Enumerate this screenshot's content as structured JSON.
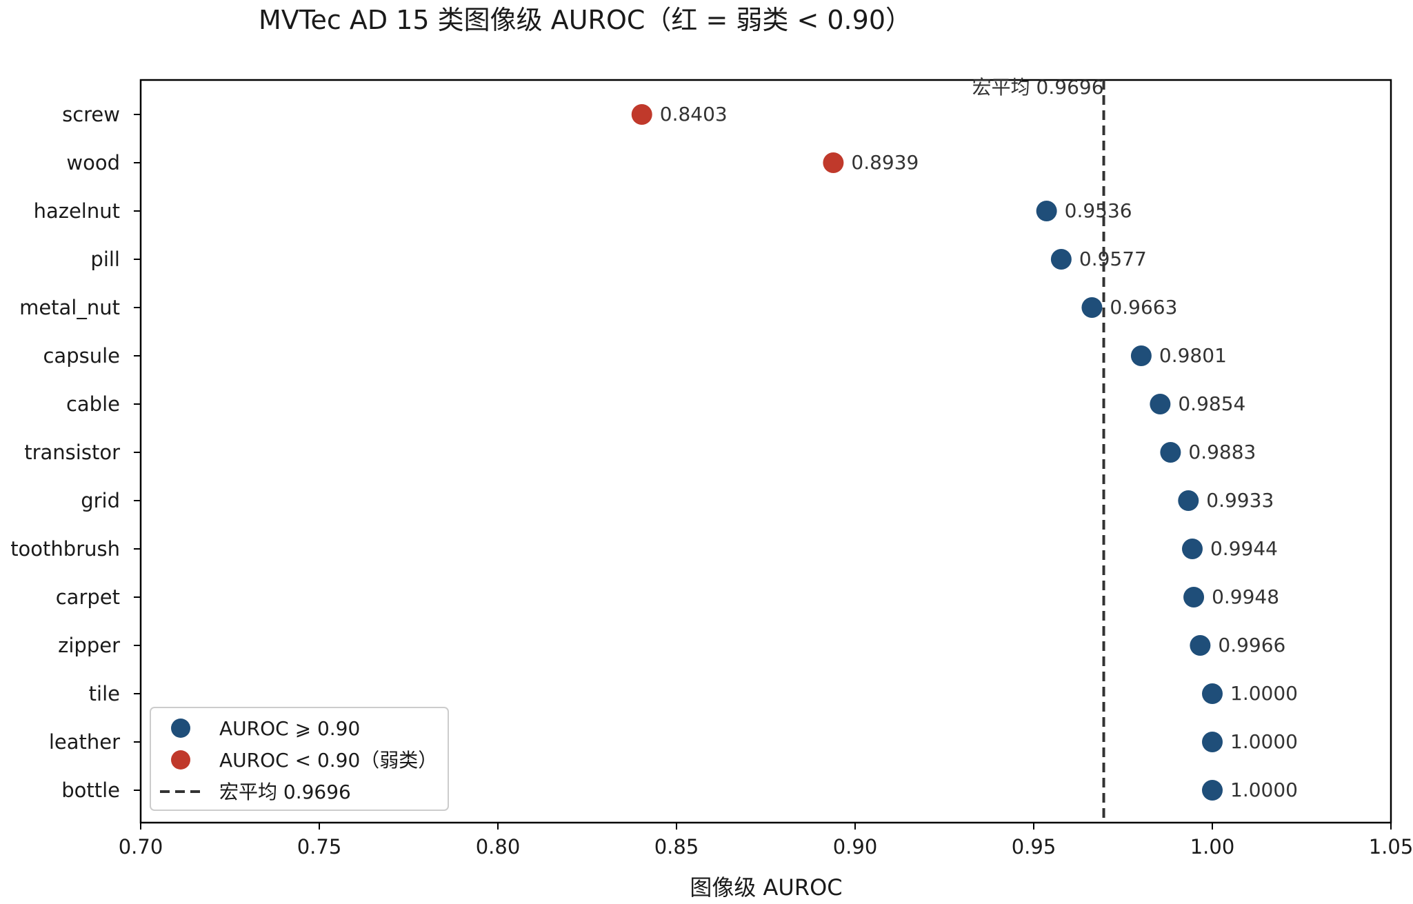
{
  "chart_data": {
    "type": "scatter",
    "title": "MVTec AD 15 类图像级 AUROC（红 = 弱类 < 0.90）",
    "xlabel": "图像级 AUROC",
    "ylabel": "",
    "xlim": [
      0.7,
      1.05
    ],
    "xticks": [
      "0.70",
      "0.75",
      "0.80",
      "0.85",
      "0.90",
      "0.95",
      "1.00",
      "1.05"
    ],
    "threshold": 0.9,
    "categories": [
      "screw",
      "wood",
      "hazelnut",
      "pill",
      "metal_nut",
      "capsule",
      "cable",
      "transistor",
      "grid",
      "toothbrush",
      "carpet",
      "zipper",
      "tile",
      "leather",
      "bottle"
    ],
    "values": [
      0.8403,
      0.8939,
      0.9536,
      0.9577,
      0.9663,
      0.9801,
      0.9854,
      0.9883,
      0.9933,
      0.9944,
      0.9948,
      0.9966,
      1.0,
      1.0,
      1.0
    ],
    "value_labels": [
      "0.8403",
      "0.8939",
      "0.9536",
      "0.9577",
      "0.9663",
      "0.9801",
      "0.9854",
      "0.9883",
      "0.9933",
      "0.9944",
      "0.9948",
      "0.9966",
      "1.0000",
      "1.0000",
      "1.0000"
    ],
    "reference_line": {
      "value": 0.9696,
      "label": "宏平均 0.9696",
      "style": "dashed"
    },
    "colors": {
      "strong": "#1f4e79",
      "weak": "#c0392b",
      "reference": "#333333"
    },
    "legend": {
      "placement": "lower-left",
      "entries": [
        {
          "label": "AUROC ⩾ 0.90",
          "marker": "circle",
          "color": "#1f4e79"
        },
        {
          "label": "AUROC < 0.90（弱类）",
          "marker": "circle",
          "color": "#c0392b"
        },
        {
          "label": "宏平均 0.9696",
          "marker": "dashed-line",
          "color": "#333333"
        }
      ]
    },
    "grid": false
  }
}
